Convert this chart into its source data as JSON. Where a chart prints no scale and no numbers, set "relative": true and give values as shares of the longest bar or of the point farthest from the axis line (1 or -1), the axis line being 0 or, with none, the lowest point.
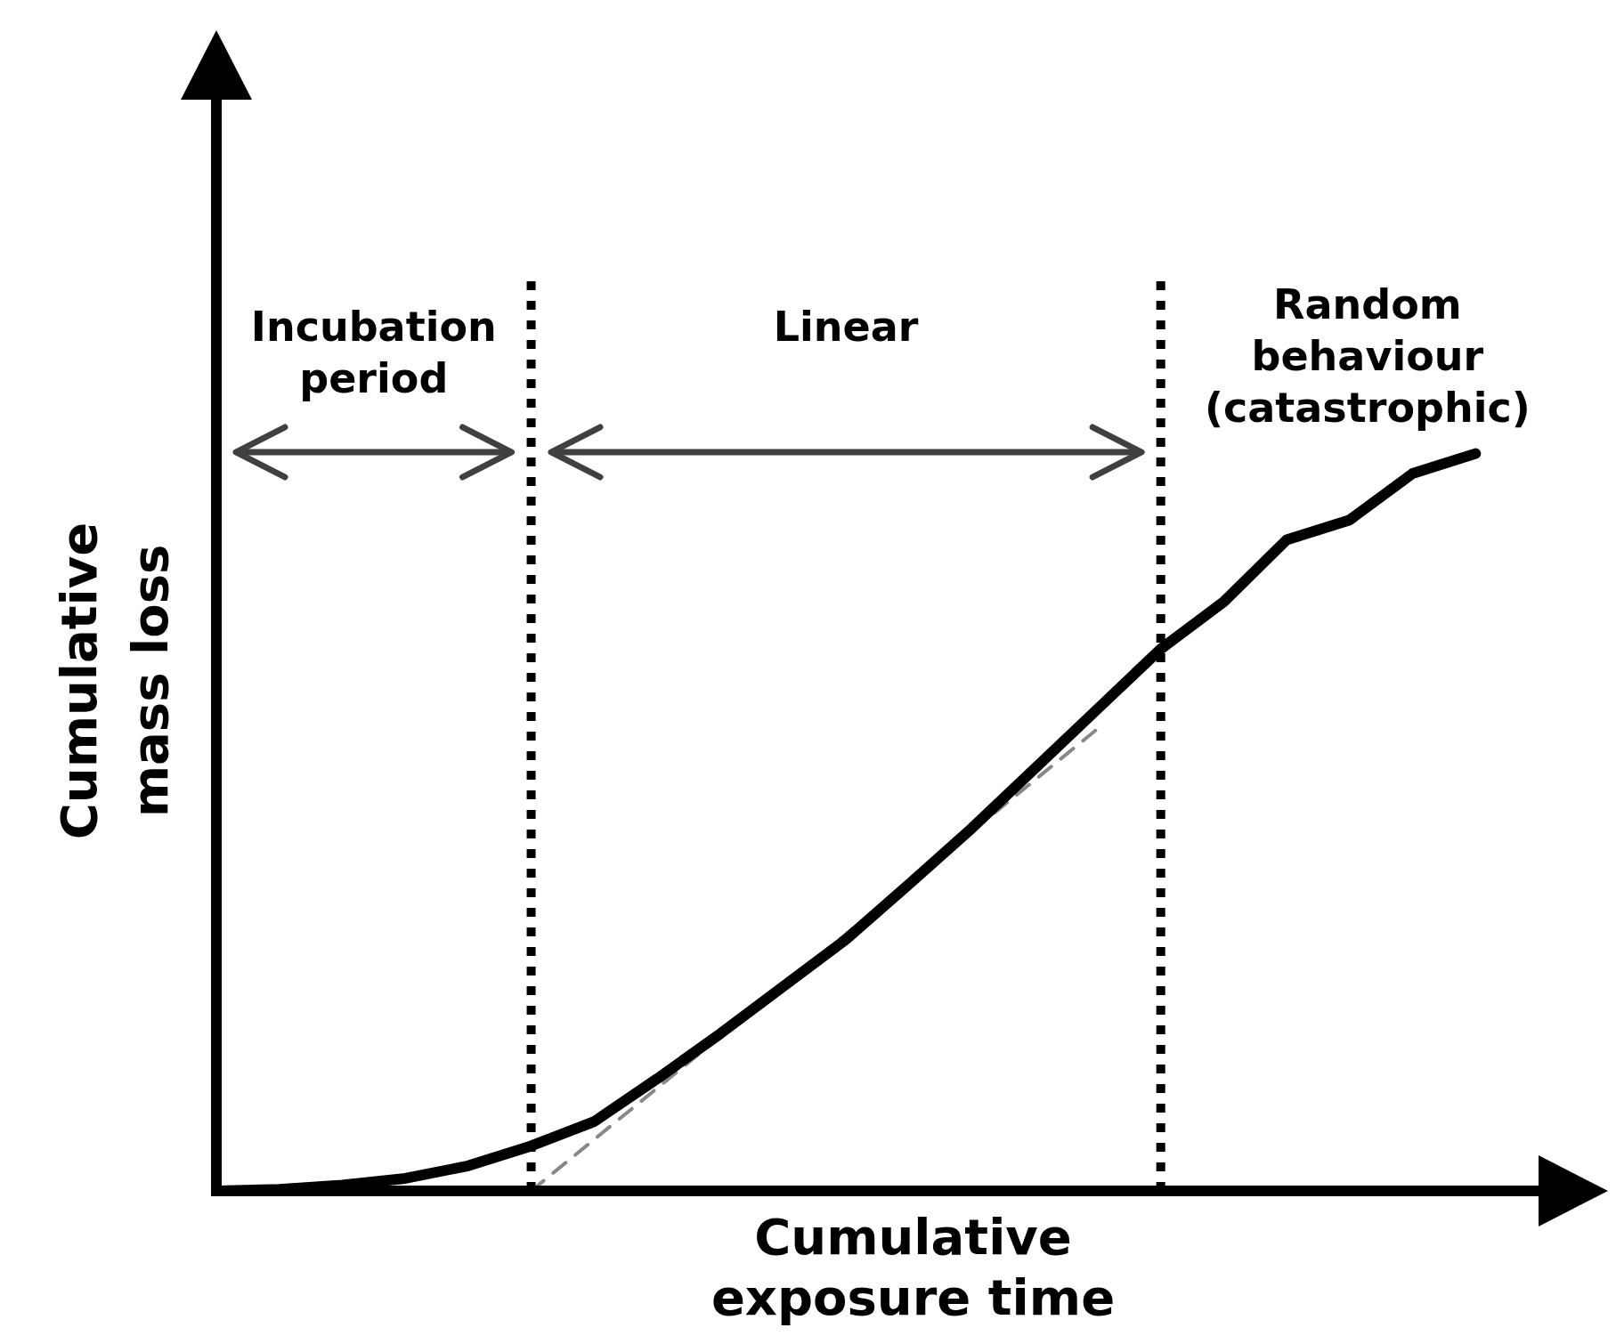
{
  "chart_data": {
    "type": "line",
    "relative": true,
    "xlabel": "Cumulative exposure time",
    "ylabel": "Cumulative mass loss",
    "tick_labels": false,
    "grid": false,
    "legend": false,
    "marker": "none",
    "line_style": "solid",
    "categories": [
      null,
      null,
      null,
      null,
      null,
      null,
      null,
      null,
      null,
      null,
      null,
      null,
      null,
      null,
      null,
      null,
      null,
      null,
      null,
      null,
      null,
      null
    ],
    "series": [
      {
        "color": "#000000",
        "values": [
          0,
          0.002,
          0.008,
          0.017,
          0.034,
          0.061,
          0.094,
          0.152,
          0.213,
          0.277,
          0.341,
          0.416,
          0.492,
          0.573,
          0.654,
          0.735,
          0.799,
          0.883,
          0.91,
          0.973,
          1,
          null
        ]
      },
      {
        "type": "line",
        "color": "#888888",
        "line_style": "dashed",
        "values": [
          null,
          null,
          null,
          null,
          null,
          0,
          null,
          null,
          null,
          null,
          null,
          null,
          null,
          null,
          0.627,
          null,
          null,
          null,
          null,
          null,
          null,
          null
        ]
      }
    ],
    "annotations": [
      "Incubation period",
      "Linear",
      "Random behaviour (catastrophic)"
    ]
  }
}
